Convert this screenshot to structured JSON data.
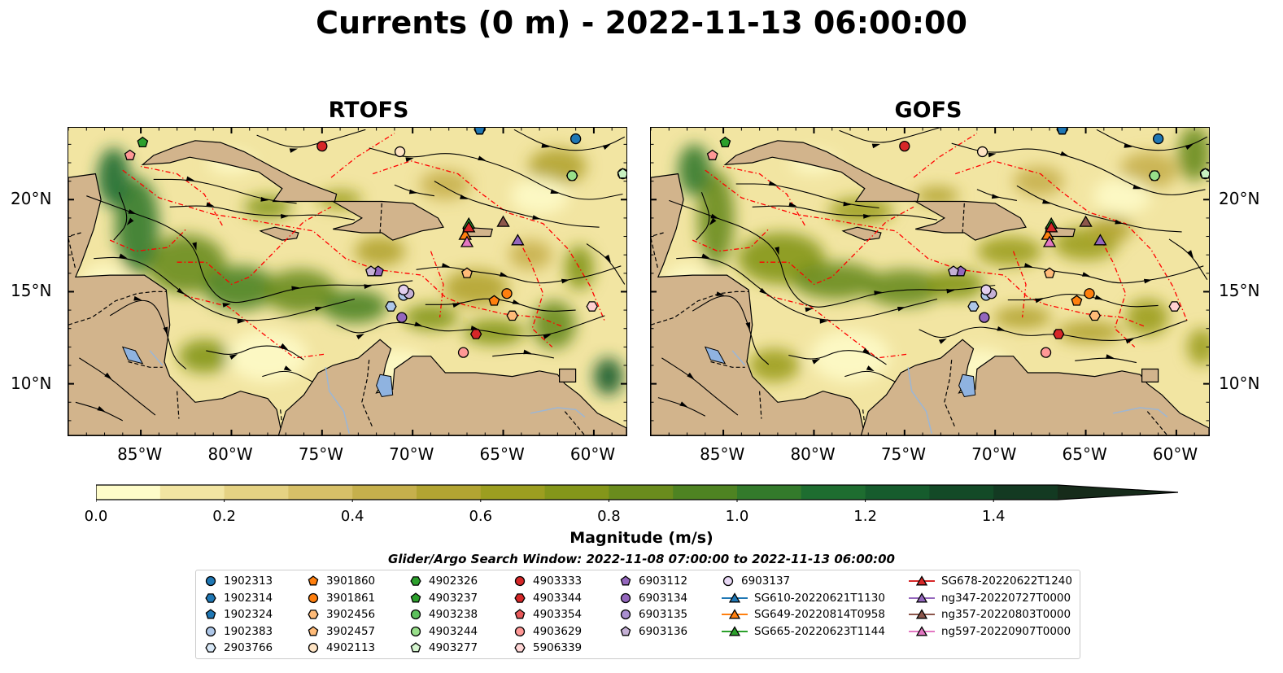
{
  "title": "Currents (0 m) - 2022-11-13 06:00:00",
  "panels": [
    {
      "title": "RTOFS"
    },
    {
      "title": "GOFS"
    }
  ],
  "chart_data": {
    "type": "heatmap",
    "variable": "Currents (0 m)",
    "time": "2022-11-13 06:00:00",
    "x_ticks": [
      "85°W",
      "80°W",
      "75°W",
      "70°W",
      "65°W",
      "60°W"
    ],
    "x_tick_values": [
      -85,
      -80,
      -75,
      -70,
      -65,
      -60
    ],
    "y_ticks": [
      "20°N",
      "15°N",
      "10°N"
    ],
    "y_tick_values": [
      20,
      15,
      10
    ],
    "xlim": [
      -89,
      -58.2
    ],
    "ylim": [
      7.2,
      23.9
    ],
    "colorbar": {
      "label": "Magnitude (m/s)",
      "ticks": [
        "0.0",
        "0.2",
        "0.4",
        "0.6",
        "0.8",
        "1.0",
        "1.2",
        "1.4"
      ],
      "range": [
        0,
        1.5
      ],
      "extend": "max",
      "colors": [
        "#fefcc9",
        "#f2e5a2",
        "#e5d283",
        "#d7c068",
        "#c6b04c",
        "#b2a432",
        "#9c9e20",
        "#84961a",
        "#6a8c1d",
        "#4e8322",
        "#337a2b",
        "#1e6d30",
        "#165c2d",
        "#134a27",
        "#133a22",
        "#162b1a"
      ]
    },
    "search_window": "Glider/Argo Search Window: 2022-11-08 07:00:00 to 2022-11-13 06:00:00",
    "argo_floats": [
      {
        "id": "1902313",
        "marker": "circle",
        "color": "#1f77b4",
        "lon": -61,
        "lat": 23.3
      },
      {
        "id": "1902314",
        "marker": "hexagon",
        "color": "#1f77b4",
        "lon": -66.3,
        "lat": 23.8
      },
      {
        "id": "1902324",
        "marker": "pentagon",
        "color": "#1f77b4",
        "lon": -66.3,
        "lat": 23.8
      },
      {
        "id": "1902383",
        "marker": "circle",
        "color": "#aec7e8",
        "lon": -70.5,
        "lat": 14.8
      },
      {
        "id": "2903766",
        "marker": "hexagon",
        "color": "#aec7e8",
        "lon": -71.2,
        "lat": 14.2
      },
      {
        "id": "3901860",
        "marker": "pentagon",
        "color": "#ff7f0e",
        "lon": -65.5,
        "lat": 14.5
      },
      {
        "id": "3901861",
        "marker": "circle",
        "color": "#ff7f0e",
        "lon": -64.8,
        "lat": 14.9
      },
      {
        "id": "3902456",
        "marker": "hexagon",
        "color": "#ffbb78",
        "lon": -64.5,
        "lat": 13.7
      },
      {
        "id": "3902457",
        "marker": "pentagon",
        "color": "#ffbb78",
        "lon": -67,
        "lat": 16
      },
      {
        "id": "4902113",
        "marker": "circle",
        "color": "#ffe4c4",
        "lon": -70.7,
        "lat": 22.6
      },
      {
        "id": "4902326",
        "marker": "hexagon",
        "color": "#2ca02c",
        "lon": -61.2,
        "lat": 21.3
      },
      {
        "id": "4903237",
        "marker": "pentagon",
        "color": "#2ca02c",
        "lon": -84.9,
        "lat": 23.1
      },
      {
        "id": "4903238",
        "marker": "circle",
        "color": "#98df8a",
        "lon": -61.2,
        "lat": 21.3
      },
      {
        "id": "4903244",
        "marker": "circle",
        "color": "#98df8a",
        "lon": -58.4,
        "lat": 21.4
      },
      {
        "id": "4903277",
        "marker": "pentagon",
        "color": "#c7f0c0",
        "lon": -58.4,
        "lat": 21.4
      },
      {
        "id": "4903333",
        "marker": "circle",
        "color": "#d62728",
        "lon": -75,
        "lat": 22.9
      },
      {
        "id": "4903344",
        "marker": "hexagon",
        "color": "#d62728",
        "lon": -66.5,
        "lat": 12.7
      },
      {
        "id": "4903354",
        "marker": "pentagon",
        "color": "#ff9896",
        "lon": -85.6,
        "lat": 22.4
      },
      {
        "id": "4903629",
        "marker": "circle",
        "color": "#ff9896",
        "lon": -67.2,
        "lat": 11.7
      },
      {
        "id": "5906339",
        "marker": "hexagon",
        "color": "#ffd1d1",
        "lon": -60.1,
        "lat": 14.2
      },
      {
        "id": "6903112",
        "marker": "pentagon",
        "color": "#9467bd",
        "lon": -71.9,
        "lat": 16.1
      },
      {
        "id": "6903134",
        "marker": "circle",
        "color": "#9467bd",
        "lon": -70.6,
        "lat": 13.6
      },
      {
        "id": "6903135",
        "marker": "circle",
        "color": "#c5b0d5",
        "lon": -70.2,
        "lat": 14.9
      },
      {
        "id": "6903136",
        "marker": "pentagon",
        "color": "#c5b0d5",
        "lon": -72.3,
        "lat": 16.1
      },
      {
        "id": "6903137",
        "marker": "circle",
        "color": "#e3cfee",
        "lon": -70.5,
        "lat": 15.1
      }
    ],
    "gliders": [
      {
        "id": "SG610-20220621T1130",
        "color": "#1f77b4",
        "lon": -67.1,
        "lat": 18.1
      },
      {
        "id": "SG649-20220814T0958",
        "color": "#ff7f0e",
        "lon": -67.1,
        "lat": 18.1
      },
      {
        "id": "SG665-20220623T1144",
        "color": "#2ca02c",
        "lon": -66.9,
        "lat": 18.7
      },
      {
        "id": "SG678-20220622T1240",
        "color": "#d62728",
        "lon": -66.9,
        "lat": 18.5
      },
      {
        "id": "ng347-20220727T0000",
        "color": "#9467bd",
        "lon": -64.2,
        "lat": 17.8
      },
      {
        "id": "ng357-20220803T0000",
        "color": "#8c564b",
        "lon": -65,
        "lat": 18.8
      },
      {
        "id": "ng597-20220907T0000",
        "color": "#e377c2",
        "lon": -67,
        "lat": 17.7
      }
    ]
  },
  "legend": {
    "columns": [
      [
        {
          "label": "1902313",
          "marker": "circle",
          "color": "#1f77b4"
        },
        {
          "label": "1902314",
          "marker": "hexagon",
          "color": "#1f77b4"
        },
        {
          "label": "1902324",
          "marker": "pentagon",
          "color": "#1f77b4"
        },
        {
          "label": "1902383",
          "marker": "circle",
          "color": "#aec7e8"
        },
        {
          "label": "2903766",
          "marker": "hexagon",
          "color": "#d8e8f7"
        }
      ],
      [
        {
          "label": "3901860",
          "marker": "pentagon",
          "color": "#ff7f0e"
        },
        {
          "label": "3901861",
          "marker": "circle",
          "color": "#ff7f0e"
        },
        {
          "label": "3902456",
          "marker": "hexagon",
          "color": "#ffbb78"
        },
        {
          "label": "3902457",
          "marker": "pentagon",
          "color": "#ffbb78"
        },
        {
          "label": "4902113",
          "marker": "circle",
          "color": "#ffe4c4"
        }
      ],
      [
        {
          "label": "4902326",
          "marker": "hexagon",
          "color": "#2ca02c"
        },
        {
          "label": "4903237",
          "marker": "pentagon",
          "color": "#2ca02c"
        },
        {
          "label": "4903238",
          "marker": "circle",
          "color": "#5cc05c"
        },
        {
          "label": "4903244",
          "marker": "circle",
          "color": "#98df8a"
        },
        {
          "label": "4903277",
          "marker": "pentagon",
          "color": "#d5f5cf"
        }
      ],
      [
        {
          "label": "4903333",
          "marker": "circle",
          "color": "#d62728"
        },
        {
          "label": "4903344",
          "marker": "hexagon",
          "color": "#d62728"
        },
        {
          "label": "4903354",
          "marker": "pentagon",
          "color": "#e8595a"
        },
        {
          "label": "4903629",
          "marker": "circle",
          "color": "#ff9896"
        },
        {
          "label": "5906339",
          "marker": "hexagon",
          "color": "#ffd6d6"
        }
      ],
      [
        {
          "label": "6903112",
          "marker": "pentagon",
          "color": "#9467bd"
        },
        {
          "label": "6903134",
          "marker": "circle",
          "color": "#9467bd"
        },
        {
          "label": "6903135",
          "marker": "circle",
          "color": "#a98fd0"
        },
        {
          "label": "6903136",
          "marker": "pentagon",
          "color": "#c5b0d5"
        }
      ],
      [
        {
          "label": "6903137",
          "marker": "circle",
          "color": "#e8d8f5"
        },
        {
          "label": "SG610-20220621T1130",
          "marker": "triangle",
          "color": "#1f77b4"
        },
        {
          "label": "SG649-20220814T0958",
          "marker": "triangle",
          "color": "#ff7f0e"
        },
        {
          "label": "SG665-20220623T1144",
          "marker": "triangle",
          "color": "#2ca02c"
        }
      ],
      [
        {
          "label": "SG678-20220622T1240",
          "marker": "triangle",
          "color": "#d62728"
        },
        {
          "label": "ng347-20220727T0000",
          "marker": "triangle",
          "color": "#9467bd"
        },
        {
          "label": "ng357-20220803T0000",
          "marker": "triangle",
          "color": "#8c564b"
        },
        {
          "label": "ng597-20220907T0000",
          "marker": "triangle",
          "color": "#e377c2"
        }
      ]
    ]
  },
  "colors": {
    "land": "#d2b48c",
    "lake": "#8fb3e0",
    "eez": "#ff0000",
    "border": "#000000"
  }
}
